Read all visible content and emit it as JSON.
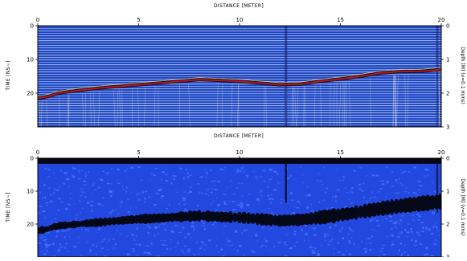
{
  "chart_data": [
    {
      "type": "heatmap",
      "title": "",
      "xlabel": "DISTANCE [METER]",
      "ylabel": "TIME [NS~]",
      "y2label": "Depth [M] (v=0.1 m/ns)",
      "xlim": [
        0,
        20
      ],
      "ylim": [
        0,
        30
      ],
      "y2lim": [
        0,
        3
      ],
      "x_ticks": [
        "0",
        "5",
        "10",
        "15",
        "20"
      ],
      "y_ticks": [
        "0",
        "10",
        "20"
      ],
      "y2_ticks": [
        "0",
        "1",
        "2",
        "3"
      ],
      "colors": {
        "bg": "#1f4fd6",
        "fringe_light": "#ffffff",
        "fringe_dark": "#0a1a6a",
        "reflector": "#b5172b"
      },
      "reflector": {
        "x": [
          0,
          0.5,
          1,
          2,
          3,
          4,
          5,
          6,
          7,
          8,
          9,
          10,
          11,
          12,
          13,
          14,
          15,
          16,
          17,
          18,
          19,
          20
        ],
        "time_ns": [
          21.5,
          21,
          20,
          19.2,
          18.5,
          18,
          17.5,
          17,
          16.5,
          16,
          16.2,
          16.5,
          17,
          17.5,
          17.3,
          16.5,
          15.8,
          15,
          14,
          13.6,
          13.5,
          13
        ]
      }
    },
    {
      "type": "heatmap",
      "title": "",
      "xlabel": "DISTANCE [METER]",
      "ylabel": "TIME [NS~]",
      "y2label": "Depth [M] (v=0.1 m/ns)",
      "xlim": [
        0,
        20
      ],
      "ylim": [
        0,
        30
      ],
      "y2lim": [
        0,
        3
      ],
      "x_ticks": [
        "0",
        "5",
        "10",
        "15",
        "20"
      ],
      "y_ticks": [
        "0",
        "10",
        "20"
      ],
      "y2_ticks": [
        "0",
        "1",
        "2",
        "3"
      ],
      "colors": {
        "bg": "#2248e0",
        "dark": "#050816",
        "speckle": "#4f82ff"
      },
      "reflector": {
        "x": [
          0,
          0.5,
          1,
          2,
          3,
          4,
          5,
          6,
          7,
          8,
          9,
          10,
          11,
          12,
          13,
          14,
          15,
          16,
          17,
          18,
          19,
          20
        ],
        "time_ns": [
          22,
          21.5,
          20.5,
          20,
          19.5,
          19,
          18.5,
          18.2,
          17.8,
          17.5,
          17.8,
          18,
          18.5,
          19,
          18.7,
          18,
          17.2,
          16.3,
          15.3,
          14.5,
          13.8,
          13.2
        ]
      }
    }
  ]
}
